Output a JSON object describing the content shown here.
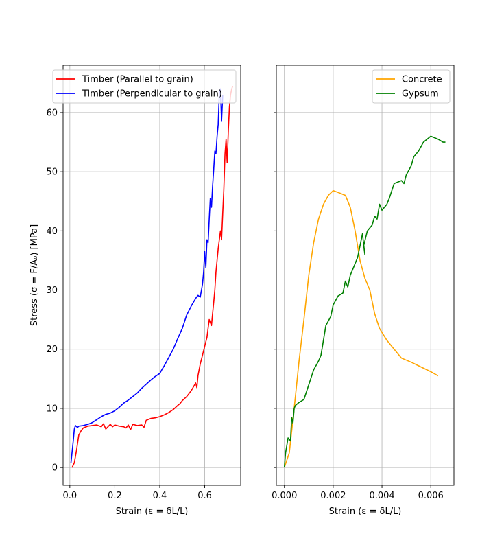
{
  "chart_data": [
    {
      "type": "line",
      "xlabel": "Strain (ε = δL/L)",
      "ylabel": "Stress (σ = F/A₀) [MPa]",
      "xlim": [
        -0.03,
        0.76
      ],
      "ylim": [
        -3,
        68
      ],
      "xticks": [
        0.0,
        0.2,
        0.4,
        0.6
      ],
      "xtick_labels": [
        "0.0",
        "0.2",
        "0.4",
        "0.6"
      ],
      "yticks": [
        0,
        10,
        20,
        30,
        40,
        50,
        60
      ],
      "ytick_labels": [
        "0",
        "10",
        "20",
        "30",
        "40",
        "50",
        "60"
      ],
      "grid": true,
      "legend_position": "top-left",
      "series": [
        {
          "name": "Timber (Parallel to grain)",
          "color": "#ff0000",
          "x": [
            0.01,
            0.02,
            0.03,
            0.04,
            0.05,
            0.06,
            0.08,
            0.1,
            0.12,
            0.14,
            0.15,
            0.16,
            0.18,
            0.19,
            0.2,
            0.22,
            0.24,
            0.25,
            0.26,
            0.27,
            0.28,
            0.3,
            0.32,
            0.33,
            0.34,
            0.36,
            0.38,
            0.4,
            0.42,
            0.44,
            0.46,
            0.48,
            0.49,
            0.5,
            0.52,
            0.54,
            0.56,
            0.565,
            0.57,
            0.58,
            0.59,
            0.6,
            0.61,
            0.62,
            0.63,
            0.635,
            0.64,
            0.645,
            0.65,
            0.66,
            0.67,
            0.675,
            0.68,
            0.685,
            0.69,
            0.695,
            0.7,
            0.705,
            0.71,
            0.715,
            0.72,
            0.725
          ],
          "y": [
            0.0,
            0.8,
            3.0,
            5.5,
            6.2,
            6.7,
            7.0,
            7.1,
            7.2,
            6.9,
            7.4,
            6.5,
            7.3,
            6.9,
            7.2,
            7.0,
            6.9,
            6.7,
            7.2,
            6.4,
            7.3,
            7.1,
            7.2,
            6.8,
            8.0,
            8.3,
            8.4,
            8.6,
            8.9,
            9.3,
            9.8,
            10.5,
            10.8,
            11.3,
            12.0,
            13.0,
            14.3,
            13.5,
            15.5,
            17.5,
            19.0,
            20.5,
            22.0,
            25.0,
            24.0,
            26.0,
            28.0,
            30.0,
            33.0,
            37.0,
            40.0,
            38.5,
            43.0,
            47.0,
            53.0,
            55.5,
            51.5,
            57.0,
            61.0,
            63.0,
            64.0,
            64.5
          ]
        },
        {
          "name": "Timber (Perpendicular to grain)",
          "color": "#0000ff",
          "x": [
            0.005,
            0.015,
            0.02,
            0.025,
            0.03,
            0.035,
            0.04,
            0.06,
            0.08,
            0.1,
            0.12,
            0.14,
            0.16,
            0.18,
            0.2,
            0.22,
            0.24,
            0.26,
            0.28,
            0.3,
            0.32,
            0.34,
            0.36,
            0.38,
            0.4,
            0.41,
            0.42,
            0.44,
            0.46,
            0.48,
            0.5,
            0.52,
            0.54,
            0.56,
            0.57,
            0.58,
            0.59,
            0.595,
            0.6,
            0.605,
            0.61,
            0.615,
            0.62,
            0.625,
            0.63,
            0.635,
            0.64,
            0.645,
            0.65,
            0.655,
            0.66,
            0.665,
            0.67,
            0.675,
            0.68
          ],
          "y": [
            0.8,
            4.5,
            6.5,
            7.1,
            6.9,
            6.8,
            7.0,
            7.1,
            7.3,
            7.6,
            8.1,
            8.6,
            9.0,
            9.2,
            9.6,
            10.2,
            10.9,
            11.4,
            12.0,
            12.6,
            13.4,
            14.1,
            14.8,
            15.4,
            15.9,
            16.6,
            17.2,
            18.6,
            20.0,
            21.8,
            23.5,
            25.8,
            27.3,
            28.6,
            29.1,
            28.8,
            31.0,
            33.0,
            36.5,
            33.8,
            38.5,
            38.0,
            42.0,
            45.5,
            44.0,
            47.5,
            50.5,
            53.5,
            53.0,
            56.0,
            58.0,
            63.5,
            64.0,
            58.5,
            63.0
          ]
        }
      ]
    },
    {
      "type": "line",
      "xlabel": "Strain (ε = δL/L)",
      "ylabel": "",
      "xlim": [
        -0.00033,
        0.00695
      ],
      "ylim": [
        -3,
        68
      ],
      "xticks": [
        0.0,
        0.002,
        0.004,
        0.006
      ],
      "xtick_labels": [
        "0.000",
        "0.002",
        "0.004",
        "0.006"
      ],
      "yticks": [
        0,
        10,
        20,
        30,
        40,
        50,
        60
      ],
      "ytick_labels": [],
      "grid": true,
      "legend_position": "top-right",
      "series": [
        {
          "name": "Concrete",
          "color": "#ffa500",
          "x": [
            0.0,
            0.0002,
            0.0004,
            0.0006,
            0.0008,
            0.001,
            0.0012,
            0.0014,
            0.0016,
            0.0018,
            0.002,
            0.0022,
            0.0025,
            0.0027,
            0.0029,
            0.0031,
            0.0033,
            0.0035,
            0.0037,
            0.0039,
            0.0042,
            0.0045,
            0.0048,
            0.0052,
            0.0056,
            0.006,
            0.0063
          ],
          "y": [
            0.0,
            2.5,
            10.0,
            18.0,
            25.0,
            32.5,
            38.0,
            42.0,
            44.5,
            46.0,
            46.8,
            46.5,
            46.0,
            44.0,
            40.0,
            35.0,
            32.0,
            30.0,
            26.0,
            23.5,
            21.5,
            20.0,
            18.5,
            17.8,
            17.0,
            16.2,
            15.5
          ]
        },
        {
          "name": "Gypsum",
          "color": "#008000",
          "x": [
            0.0,
            5e-05,
            0.00015,
            0.00025,
            0.0003,
            0.00035,
            0.0004,
            0.00045,
            0.0006,
            0.0008,
            0.001,
            0.0012,
            0.0014,
            0.0015,
            0.0017,
            0.0019,
            0.002,
            0.0022,
            0.0024,
            0.0025,
            0.0026,
            0.0027,
            0.0028,
            0.003,
            0.0032,
            0.0033,
            0.00325,
            0.0034,
            0.0036,
            0.0037,
            0.0038,
            0.0039,
            0.004,
            0.0042,
            0.0043,
            0.0045,
            0.0048,
            0.0049,
            0.005,
            0.0052,
            0.0053,
            0.0055,
            0.0057,
            0.006,
            0.0063,
            0.0065,
            0.0066
          ],
          "y": [
            0.0,
            2.5,
            5.0,
            4.5,
            8.5,
            7.5,
            10.0,
            10.5,
            11.0,
            11.5,
            14.0,
            16.5,
            18.0,
            19.0,
            24.0,
            25.5,
            27.5,
            29.0,
            29.5,
            31.5,
            30.5,
            32.5,
            33.5,
            35.5,
            39.5,
            36.0,
            37.5,
            40.0,
            41.0,
            42.5,
            42.0,
            44.5,
            43.5,
            44.5,
            45.5,
            48.0,
            48.5,
            48.0,
            49.5,
            51.0,
            52.5,
            53.5,
            55.0,
            56.0,
            55.5,
            55.0,
            55.0
          ]
        }
      ]
    }
  ]
}
